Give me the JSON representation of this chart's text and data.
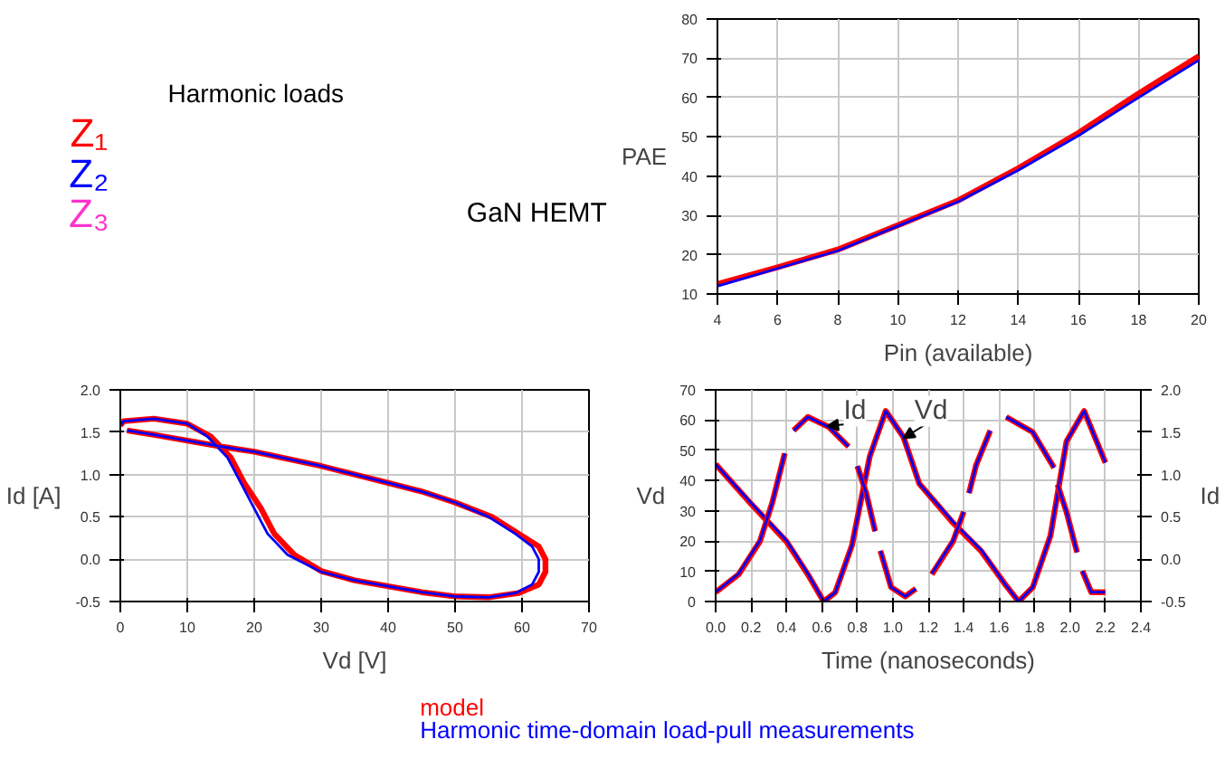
{
  "chart_data": [
    {
      "type": "other",
      "annotations": [
        "Harmonic loads",
        "Z₁",
        "Z₂",
        "Z₃",
        "GaN HEMT"
      ]
    },
    {
      "type": "line",
      "ylabel": "PAE",
      "xlabel": "Pin (available)",
      "xlim": [
        4,
        20
      ],
      "ylim": [
        10,
        80
      ],
      "xticks": [
        4,
        6,
        8,
        10,
        12,
        14,
        16,
        18,
        20
      ],
      "yticks": [
        10,
        20,
        30,
        40,
        50,
        60,
        70,
        80
      ],
      "grid": true,
      "line_style": "solid",
      "x": [
        4,
        6,
        8,
        10,
        12,
        14,
        16,
        18,
        20
      ],
      "series": [
        {
          "color": "#ff0000",
          "values": [
            12.5,
            16.8,
            21.3,
            27.5,
            33.8,
            42,
            51,
            61,
            70.5
          ]
        },
        {
          "color": "#0000ff",
          "values": [
            12,
            16.5,
            21,
            27.3,
            33.5,
            41.5,
            50.3,
            60,
            69.5
          ]
        }
      ]
    },
    {
      "type": "line",
      "ylabel": "Id [A]",
      "xlabel": "Vd [V]",
      "xlim": [
        0,
        70
      ],
      "ylim": [
        -0.5,
        2.0
      ],
      "xticks": [
        0,
        10,
        20,
        30,
        40,
        50,
        60,
        70
      ],
      "yticks": [
        {
          "value": -0.5,
          "label": "-0.5"
        },
        {
          "value": 0,
          "label": "0.0"
        },
        {
          "value": 0.5,
          "label": "0.5"
        },
        {
          "value": 1,
          "label": "1.0"
        },
        {
          "value": 1.5,
          "label": "1.5"
        },
        {
          "value": 2,
          "label": "2.0"
        }
      ],
      "grid": true,
      "series": [
        {
          "color": "#ff0000",
          "x": [
            0,
            0.5,
            5,
            10,
            13.5,
            16.5,
            18.5,
            21,
            23,
            26,
            30,
            35,
            40,
            45,
            50,
            55,
            59.5,
            62.5,
            63.5,
            63.5,
            62.5,
            59.5,
            55.5,
            50,
            45,
            40,
            30,
            20,
            15,
            10,
            5,
            1
          ],
          "values": [
            1.58,
            1.63,
            1.66,
            1.6,
            1.45,
            1.2,
            0.9,
            0.6,
            0.3,
            0.05,
            -0.14,
            -0.25,
            -0.32,
            -0.39,
            -0.44,
            -0.45,
            -0.4,
            -0.3,
            -0.15,
            0,
            0.15,
            0.3,
            0.5,
            0.67,
            0.8,
            0.9,
            1.1,
            1.27,
            1.33,
            1.4,
            1.47,
            1.52
          ]
        },
        {
          "color": "#0000ff",
          "x": [
            0,
            0.5,
            5,
            10,
            13,
            16,
            18,
            20,
            22,
            25,
            30,
            35,
            40,
            45,
            50,
            55,
            59,
            61.5,
            62.5,
            62.5,
            61.5,
            59,
            55,
            50,
            45,
            40,
            30,
            20,
            15,
            10,
            5,
            1
          ],
          "values": [
            1.58,
            1.63,
            1.66,
            1.6,
            1.45,
            1.2,
            0.9,
            0.6,
            0.3,
            0.05,
            -0.15,
            -0.25,
            -0.32,
            -0.39,
            -0.44,
            -0.45,
            -0.4,
            -0.3,
            -0.15,
            0,
            0.15,
            0.3,
            0.5,
            0.67,
            0.8,
            0.9,
            1.1,
            1.27,
            1.33,
            1.4,
            1.47,
            1.52
          ]
        }
      ]
    },
    {
      "type": "line",
      "ylabel": "Vd",
      "y2label": "Id",
      "xlabel": "Time (nanoseconds)",
      "xlim": [
        0,
        2.4
      ],
      "ylim": [
        0,
        70
      ],
      "y2lim": [
        -0.5,
        2.0
      ],
      "xticks": [
        {
          "value": 0,
          "label": "0.0"
        },
        0.2,
        0.4,
        0.6,
        0.8,
        {
          "value": 1,
          "label": "1.0"
        },
        1.2,
        1.4,
        1.6,
        1.8,
        {
          "value": 2,
          "label": "2.0"
        },
        2.2,
        2.4
      ],
      "yticks": [
        0,
        10,
        20,
        30,
        40,
        50,
        60,
        70
      ],
      "y2ticks": [
        {
          "value": -0.5,
          "label": "-0.5"
        },
        {
          "value": 0,
          "label": "0.0"
        },
        {
          "value": 0.5,
          "label": "0.5"
        },
        {
          "value": 1,
          "label": "1.0"
        },
        {
          "value": 1.5,
          "label": "1.5"
        },
        {
          "value": 2,
          "label": "2.0"
        }
      ],
      "grid": true,
      "legend": "bottom",
      "annotations": [
        {
          "text": "Id",
          "x": 0.63,
          "y": 58
        },
        {
          "text": "Vd",
          "x": 1.06,
          "y": 54
        }
      ],
      "series": [
        {
          "name": "model",
          "color": "#ff0000",
          "x": [
            0,
            0.2,
            0.4,
            0.52,
            0.61,
            0.675,
            0.77,
            0.87,
            0.96,
            1.06,
            1.15,
            1.34,
            1.5,
            1.63,
            1.71,
            1.79,
            1.89,
            1.98,
            2.08,
            2.2
          ],
          "values": [
            45.4,
            32.3,
            19.8,
            9,
            0,
            3,
            18.7,
            48,
            63,
            54.4,
            38.9,
            26,
            16.6,
            6,
            0,
            4.7,
            21.8,
            52.9,
            63,
            45.9
          ]
        },
        {
          "name": "Harmonic time-domain load-pull measurements",
          "color": "#0000ff",
          "x": [
            0,
            0.2,
            0.4,
            0.52,
            0.61,
            0.675,
            0.77,
            0.87,
            0.96,
            1.06,
            1.15,
            1.34,
            1.5,
            1.63,
            1.71,
            1.79,
            1.89,
            1.98,
            2.08,
            2.2
          ],
          "values": [
            45.4,
            32.6,
            20.2,
            9.3,
            0,
            3,
            18.7,
            48,
            63,
            54.4,
            38.9,
            26.4,
            17,
            6,
            0,
            4.7,
            21.8,
            52.9,
            63,
            45.9
          ]
        },
        {
          "axis": "y2",
          "color": "#ff0000",
          "x": [
            0,
            0.13,
            0.25,
            0.32,
            0.39,
            0.415,
            0.44,
            0.52,
            0.64,
            0.75,
            0.775,
            0.8,
            0.85,
            0.9,
            0.915,
            0.93,
            0.99,
            1.07,
            1.13,
            1.175,
            1.22,
            1.34,
            1.4,
            1.415,
            1.43,
            1.47,
            1.55,
            1.595,
            1.64,
            1.79,
            1.91,
            1.92,
            1.93,
            1.98,
            2.04,
            2.055,
            2.07,
            2.12,
            2.2
          ],
          "values": [
            -0.39,
            -0.18,
            0.21,
            0.67,
            1.25,
            null,
            1.52,
            1.68,
            1.56,
            1.33,
            null,
            1.1,
            0.78,
            0.33,
            null,
            0.1,
            -0.33,
            -0.44,
            -0.35,
            null,
            -0.18,
            0.21,
            0.56,
            null,
            0.78,
            1.11,
            1.52,
            null,
            1.68,
            1.5,
            1.08,
            null,
            0.88,
            0.56,
            0.08,
            null,
            -0.14,
            -0.39,
            -0.39
          ]
        },
        {
          "axis": "y2",
          "color": "#0000ff",
          "x": [
            0,
            0.13,
            0.25,
            0.32,
            0.39,
            0.415,
            0.44,
            0.52,
            0.64,
            0.75,
            0.775,
            0.8,
            0.85,
            0.9,
            0.915,
            0.93,
            0.99,
            1.07,
            1.13,
            1.175,
            1.22,
            1.34,
            1.4,
            1.415,
            1.43,
            1.47,
            1.55,
            1.595,
            1.64,
            1.79,
            1.91,
            1.92,
            1.93,
            1.98,
            2.04,
            2.055,
            2.07,
            2.12,
            2.2
          ],
          "values": [
            -0.39,
            -0.17,
            0.22,
            0.67,
            1.25,
            null,
            1.52,
            1.68,
            1.56,
            1.33,
            null,
            1.1,
            0.78,
            0.33,
            null,
            0.1,
            -0.33,
            -0.44,
            -0.35,
            null,
            -0.17,
            0.22,
            0.56,
            null,
            0.78,
            1.11,
            1.52,
            null,
            1.68,
            1.5,
            1.08,
            null,
            0.88,
            0.56,
            0.08,
            null,
            -0.14,
            -0.39,
            -0.39
          ]
        }
      ]
    }
  ]
}
